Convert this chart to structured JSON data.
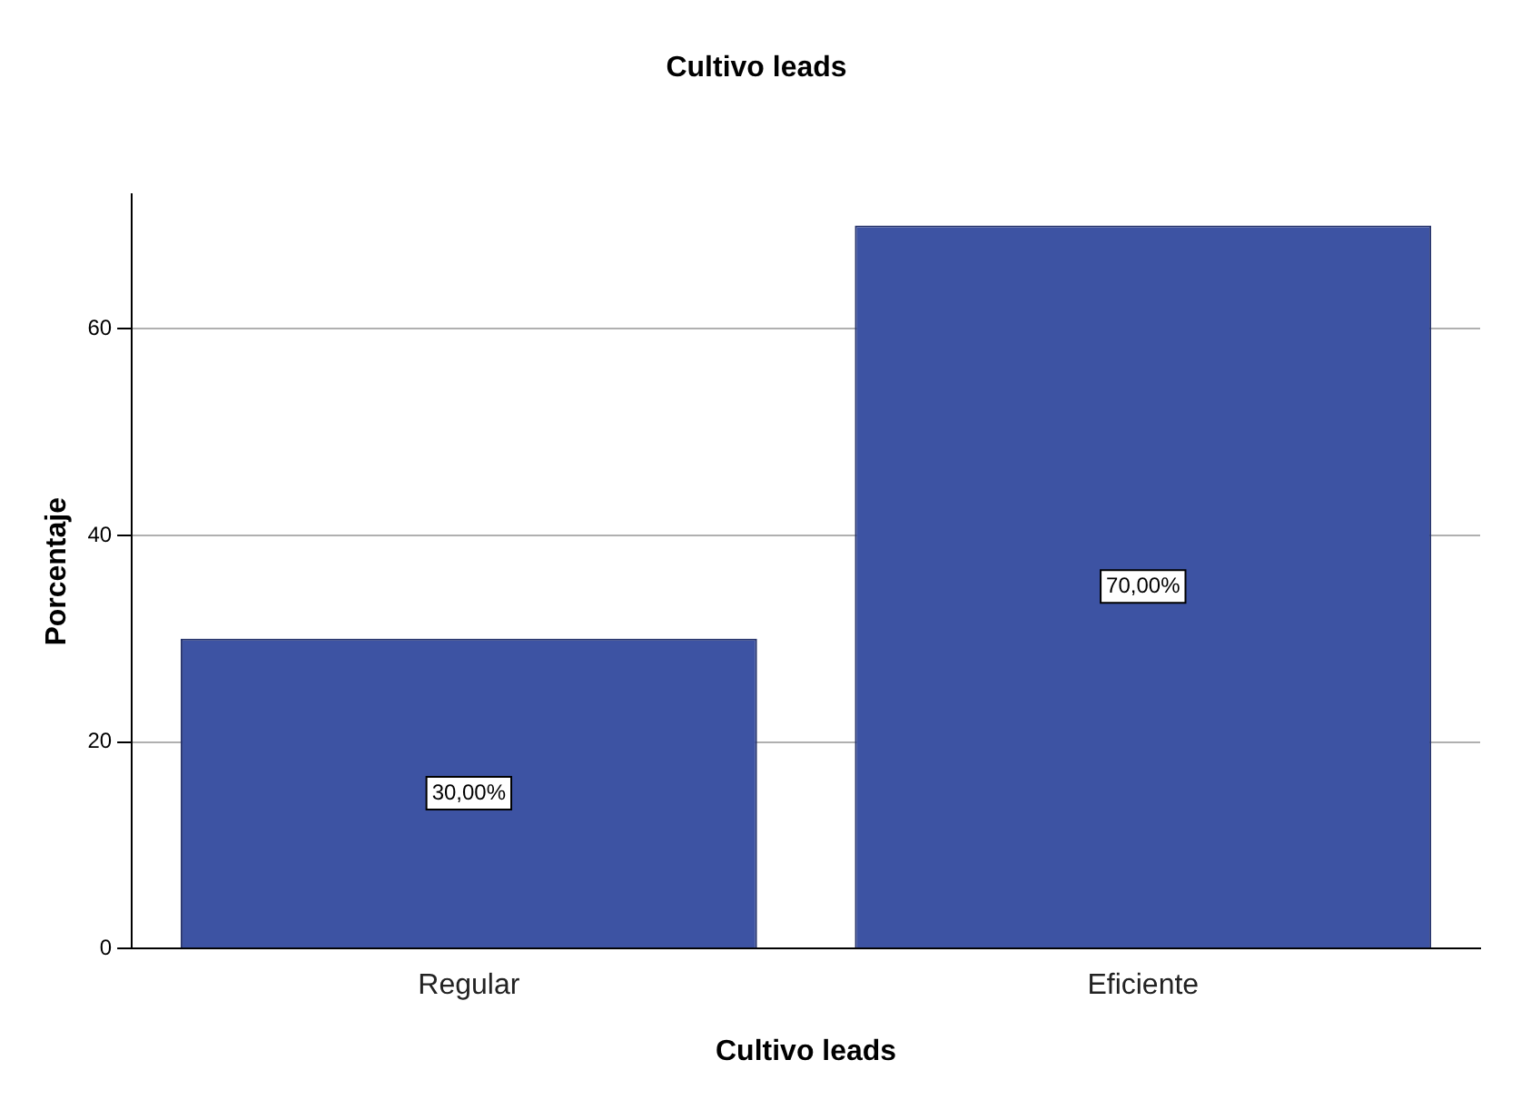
{
  "chart_data": {
    "type": "bar",
    "title": "Cultivo leads",
    "xlabel": "Cultivo leads",
    "ylabel": "Porcentaje",
    "categories": [
      "Regular",
      "Eficiente"
    ],
    "values": [
      30,
      70
    ],
    "value_labels": [
      "30,00%",
      "70,00%"
    ],
    "color": "#3d53a3",
    "ylim": [
      0,
      73
    ],
    "yticks": [
      0,
      20,
      40,
      60
    ],
    "grid": "y",
    "legend": false
  }
}
